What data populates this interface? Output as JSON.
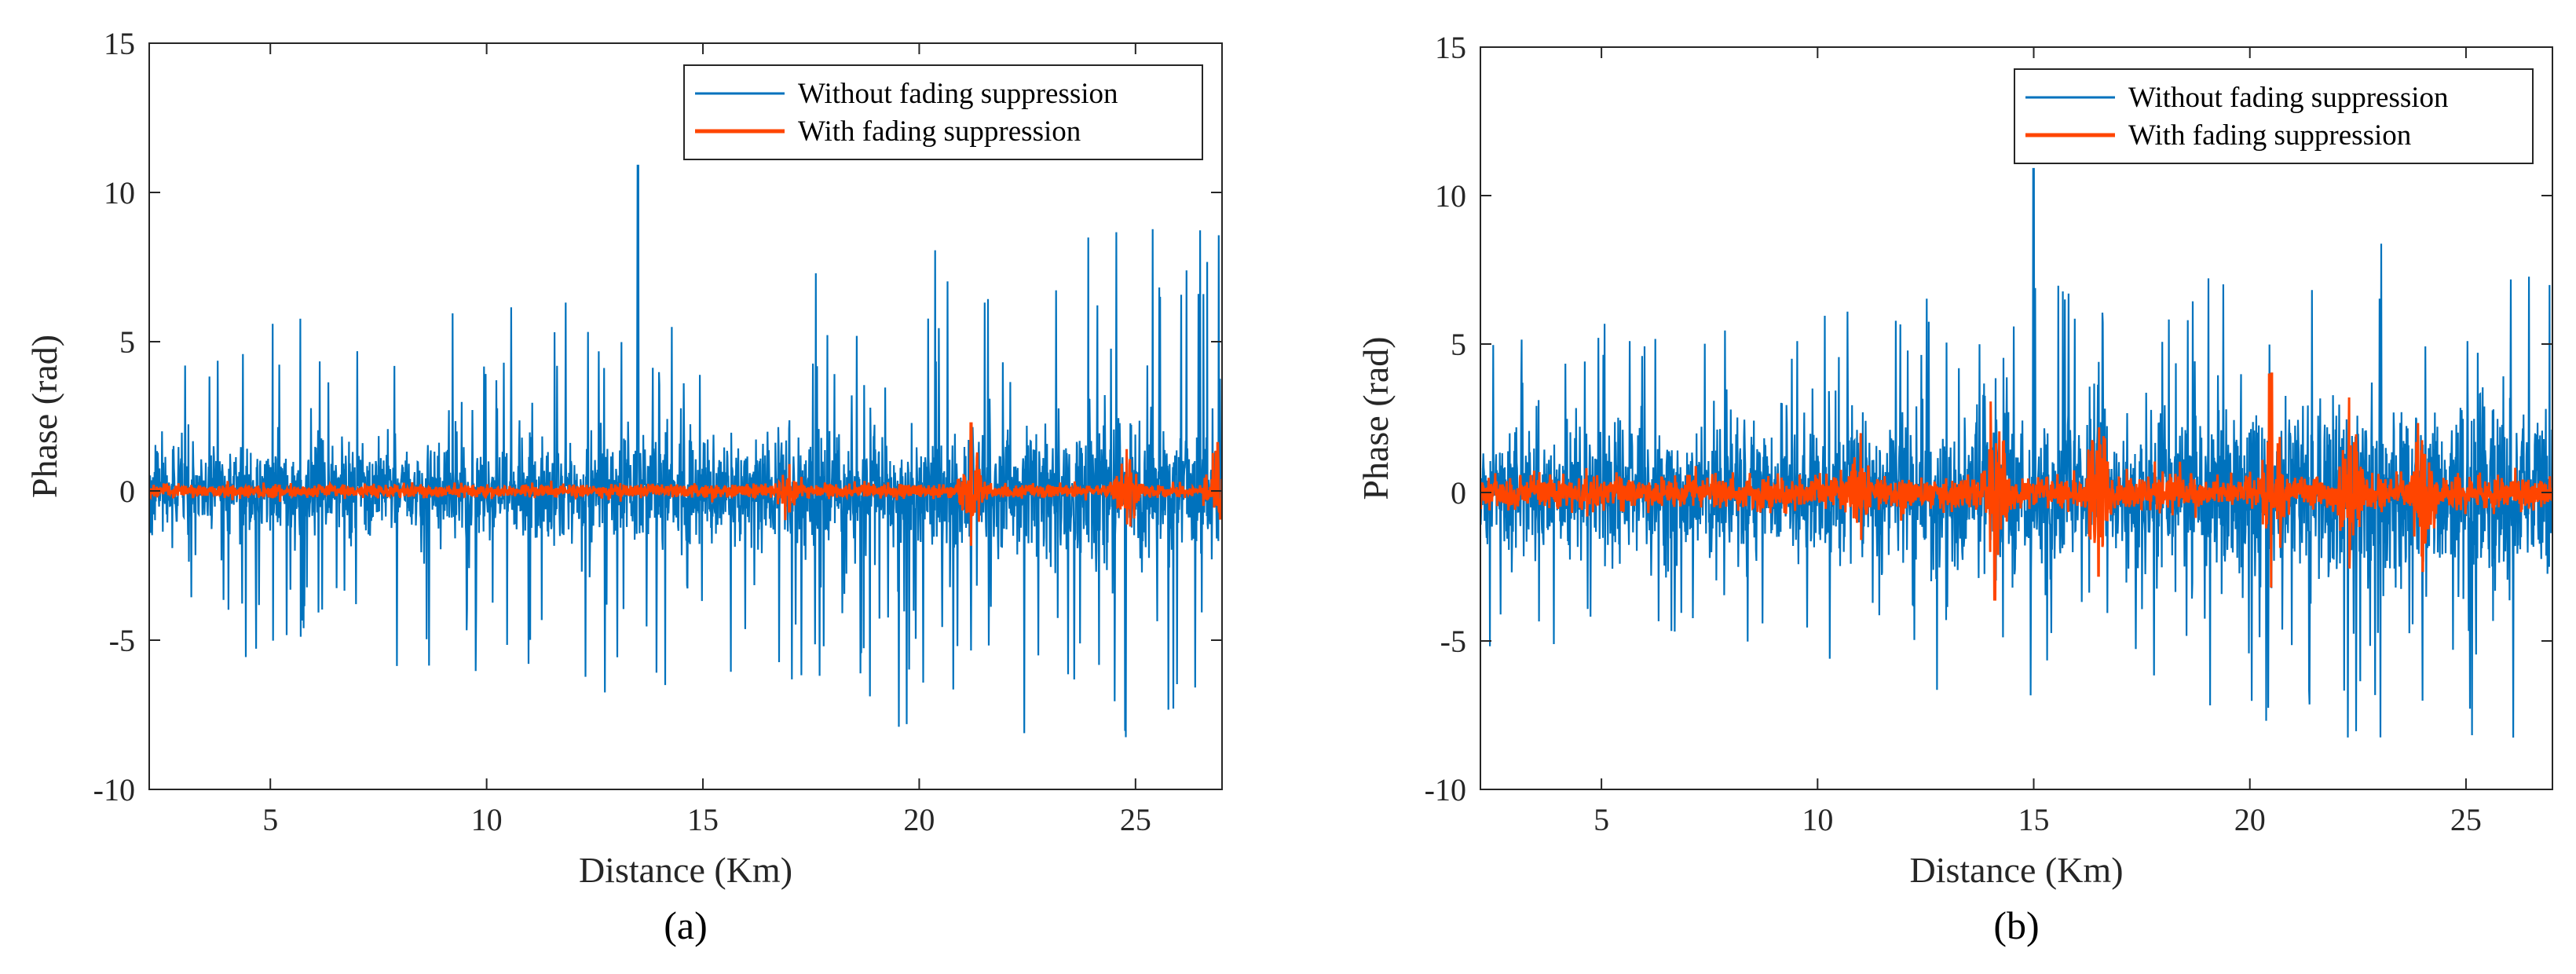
{
  "colors": {
    "without": "#0072BD",
    "with": "#FF4500",
    "axis": "#262626"
  },
  "chart_data": [
    {
      "type": "line",
      "panel_label": "(a)",
      "xlabel": "Distance (Km)",
      "ylabel": "Phase (rad)",
      "xlim": [
        2.2,
        27
      ],
      "ylim": [
        -10,
        15
      ],
      "xticks": [
        5,
        10,
        15,
        20,
        25
      ],
      "yticks": [
        -10,
        -5,
        0,
        5,
        10,
        15
      ],
      "xtick_labels": [
        "5",
        "10",
        "15",
        "20",
        "25"
      ],
      "ytick_labels": [
        "-10",
        "-5",
        "0",
        "5",
        "10",
        "15"
      ],
      "legend_position": "top-right",
      "series": [
        {
          "name": "Without fading suppression",
          "style": "dense noise",
          "typical_amplitude": 1.6,
          "min": -8.7,
          "max": 10.9,
          "peak_x": 13.5
        },
        {
          "name": "With fading suppression",
          "style": "dense noise",
          "typical_amplitude": 0.25,
          "bursts": [
            [
              21.2,
              2.3
            ],
            [
              24.8,
              1.4
            ],
            [
              26.9,
              1.6
            ],
            [
              17.0,
              0.9
            ]
          ]
        }
      ]
    },
    {
      "type": "line",
      "panel_label": "(b)",
      "xlabel": "Distance (Km)",
      "ylabel": "Phase (rad)",
      "xlim": [
        2.2,
        27
      ],
      "ylim": [
        -10,
        15
      ],
      "xticks": [
        5,
        10,
        15,
        20,
        25
      ],
      "yticks": [
        -10,
        -5,
        0,
        5,
        10,
        15
      ],
      "xtick_labels": [
        "5",
        "10",
        "15",
        "20",
        "25"
      ],
      "ytick_labels": [
        "-10",
        "-5",
        "0",
        "5",
        "10",
        "15"
      ],
      "legend_position": "top-right",
      "series": [
        {
          "name": "Without fading suppression",
          "style": "dense noise",
          "typical_amplitude": 2.2,
          "min": -9.1,
          "max": 10.9,
          "peak_x": 15.0
        },
        {
          "name": "With fading suppression",
          "style": "dense noise",
          "typical_amplitude": 0.6,
          "bursts": [
            [
              14.1,
              4.5
            ],
            [
              16.5,
              3.5
            ],
            [
              20.5,
              4.0
            ],
            [
              22.3,
              3.2
            ],
            [
              24.0,
              3.3
            ],
            [
              11.0,
              2.0
            ]
          ]
        }
      ]
    }
  ]
}
